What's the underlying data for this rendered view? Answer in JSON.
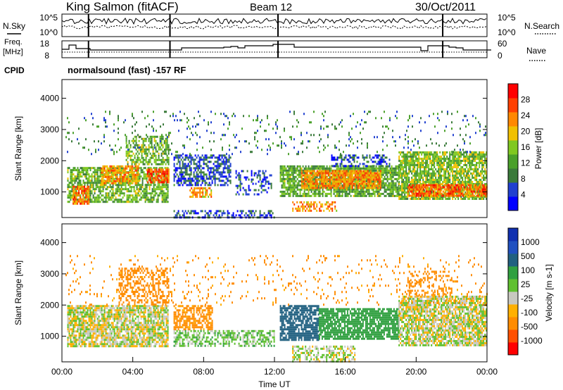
{
  "header": {
    "station": "King Salmon (fitACF)",
    "beam": "Beam 12",
    "date": "30/Oct/2011"
  },
  "summary": {
    "nsky_label": "N.Sky",
    "nsky_ticks": [
      "10^5",
      "10^0"
    ],
    "nsearch_label": "N.Search",
    "nsearch_ticks": [
      "10^5",
      "10^0"
    ],
    "freq_label_1": "Freq.",
    "freq_label_2": "[MHz]",
    "freq_ticks": [
      "18",
      "8"
    ],
    "nave_label": "Nave",
    "nave_ticks": [
      "60",
      "0"
    ],
    "cpid_label": "CPID",
    "cpid_text": "normalsound (fast)  -157 RF"
  },
  "colors": {
    "power": [
      "#0000ff",
      "#2040d0",
      "#3a7a3a",
      "#4aa02a",
      "#80c820",
      "#f0c000",
      "#ff8800",
      "#ff4000",
      "#ff0000"
    ],
    "velocity": [
      "#ff0000",
      "#ff5000",
      "#ff8c00",
      "#ffb000",
      "#c8c8c0",
      "#60c030",
      "#30a040",
      "#206080",
      "#2050c0",
      "#1030b0"
    ]
  },
  "chart_data": [
    {
      "type": "heatmap",
      "name": "power-panel",
      "ylabel": "Slant Range [km]",
      "yticks": [
        1000,
        2000,
        3000,
        4000
      ],
      "ylim": [
        180,
        4600
      ],
      "colorbar": {
        "label": "Power [dB]",
        "ticks": [
          "4",
          "8",
          "12",
          "16",
          "20",
          "24",
          "28"
        ],
        "range": [
          0,
          32
        ]
      },
      "regions": [
        {
          "t": [
            0.3,
            6.0
          ],
          "r": [
            700,
            1800
          ],
          "v": 14,
          "d": 0.7
        },
        {
          "t": [
            0.6,
            1.5
          ],
          "r": [
            650,
            1200
          ],
          "v": 24,
          "d": 0.8
        },
        {
          "t": [
            2.2,
            4.3
          ],
          "r": [
            1300,
            1850
          ],
          "v": 22,
          "d": 0.75
        },
        {
          "t": [
            4.8,
            6.0
          ],
          "r": [
            1300,
            1750
          ],
          "v": 26,
          "d": 0.8
        },
        {
          "t": [
            3.6,
            6.0
          ],
          "r": [
            1900,
            2800
          ],
          "v": 14,
          "d": 0.55
        },
        {
          "t": [
            6.3,
            9.5
          ],
          "r": [
            1200,
            2200
          ],
          "v": 6,
          "d": 0.6
        },
        {
          "t": [
            7.2,
            8.4
          ],
          "r": [
            850,
            1150
          ],
          "v": 22,
          "d": 0.7
        },
        {
          "t": [
            9.8,
            11.8
          ],
          "r": [
            900,
            1700
          ],
          "v": 6,
          "d": 0.35
        },
        {
          "t": [
            6.3,
            12.0
          ],
          "r": [
            190,
            420
          ],
          "v": 5,
          "d": 0.5
        },
        {
          "t": [
            12.3,
            19.0
          ],
          "r": [
            850,
            1850
          ],
          "v": 13,
          "d": 0.8
        },
        {
          "t": [
            13.5,
            18.0
          ],
          "r": [
            1100,
            1700
          ],
          "v": 23,
          "d": 0.8
        },
        {
          "t": [
            13.0,
            15.5
          ],
          "r": [
            400,
            700
          ],
          "v": 22,
          "d": 0.5
        },
        {
          "t": [
            15.2,
            18.5
          ],
          "r": [
            1850,
            2200
          ],
          "v": 6,
          "d": 0.4
        },
        {
          "t": [
            19.0,
            24.0
          ],
          "r": [
            800,
            2300
          ],
          "v": 15,
          "d": 0.8
        },
        {
          "t": [
            19.5,
            24.0
          ],
          "r": [
            850,
            1250
          ],
          "v": 25,
          "d": 0.8
        },
        {
          "t": [
            0.2,
            24.0
          ],
          "r": [
            2200,
            3600
          ],
          "v": 9,
          "d": 0.07
        }
      ]
    },
    {
      "type": "heatmap",
      "name": "velocity-panel",
      "ylabel": "Slant Range [km]",
      "yticks": [
        1000,
        2000,
        3000,
        4000
      ],
      "ylim": [
        180,
        4600
      ],
      "xlabel": "Time UT",
      "xticks": [
        "00:00",
        "04:00",
        "08:00",
        "12:00",
        "16:00",
        "20:00",
        "00:00"
      ],
      "xlim": [
        0,
        24
      ],
      "colorbar": {
        "label": "Velocity [m s-1]",
        "ticks": [
          "1000",
          "500",
          "100",
          "25",
          "-25",
          "-100",
          "-500",
          "-1000"
        ],
        "range": [
          -1200,
          1200
        ]
      },
      "regions": [
        {
          "t": [
            0.3,
            6.0
          ],
          "r": [
            700,
            2000
          ],
          "v": 0,
          "d": 0.8
        },
        {
          "t": [
            3.2,
            6.0
          ],
          "r": [
            2000,
            3200
          ],
          "v": -300,
          "d": 0.45
        },
        {
          "t": [
            6.3,
            8.5
          ],
          "r": [
            1200,
            2000
          ],
          "v": -150,
          "d": 0.65
        },
        {
          "t": [
            6.3,
            12.0
          ],
          "r": [
            700,
            1200
          ],
          "v": 60,
          "d": 0.55
        },
        {
          "t": [
            12.3,
            14.5
          ],
          "r": [
            900,
            2000
          ],
          "v": 600,
          "d": 0.75
        },
        {
          "t": [
            14.5,
            19.0
          ],
          "r": [
            900,
            1900
          ],
          "v": 200,
          "d": 0.8
        },
        {
          "t": [
            13.0,
            16.5
          ],
          "r": [
            200,
            700
          ],
          "v": 15,
          "d": 0.5
        },
        {
          "t": [
            19.0,
            24.0
          ],
          "r": [
            700,
            2300
          ],
          "v": 5,
          "d": 0.8
        },
        {
          "t": [
            19.5,
            22.0
          ],
          "r": [
            2300,
            3100
          ],
          "v": -250,
          "d": 0.3
        },
        {
          "t": [
            0.2,
            24.0
          ],
          "r": [
            2000,
            3600
          ],
          "v": -150,
          "d": 0.06
        }
      ]
    }
  ]
}
